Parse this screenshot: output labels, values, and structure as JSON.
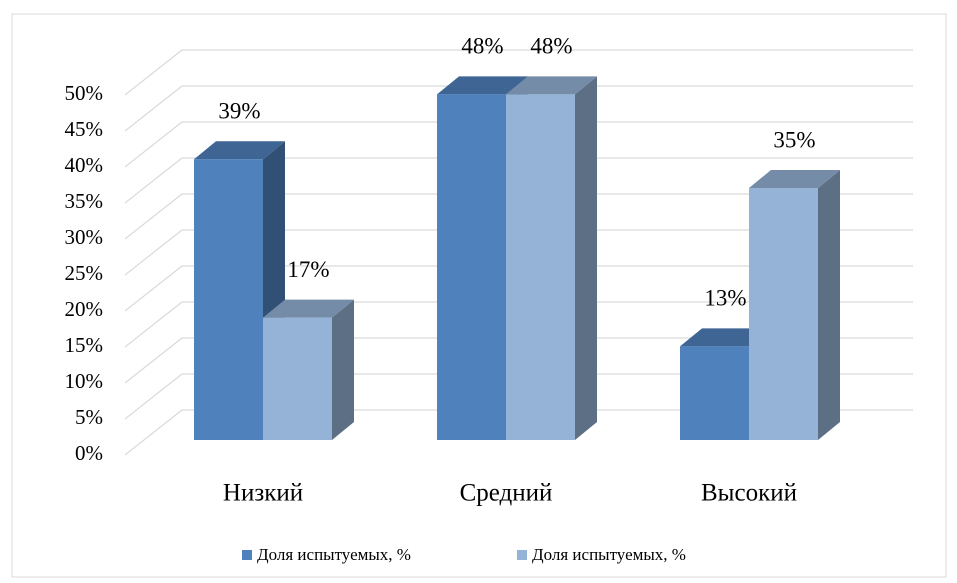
{
  "chart_data": {
    "type": "bar3d",
    "categories": [
      "Низкий",
      "Средний",
      "Высокий"
    ],
    "series": [
      {
        "name": "Доля испытуемых, %",
        "color": "#4f81bd",
        "values": [
          39,
          48,
          13
        ],
        "value_labels": [
          "39%",
          "48%",
          "13%"
        ]
      },
      {
        "name": "Доля испытуемых, %",
        "color": "#95b3d7",
        "values": [
          17,
          48,
          35
        ],
        "value_labels": [
          "17%",
          "48%",
          "35%"
        ]
      }
    ],
    "ylim": [
      0,
      50
    ],
    "yticks": [
      {
        "value": 0,
        "label": "0%"
      },
      {
        "value": 5,
        "label": "5%"
      },
      {
        "value": 10,
        "label": "10%"
      },
      {
        "value": 15,
        "label": "15%"
      },
      {
        "value": 20,
        "label": "20%"
      },
      {
        "value": 25,
        "label": "25%"
      },
      {
        "value": 30,
        "label": "30%"
      },
      {
        "value": 35,
        "label": "35%"
      },
      {
        "value": 40,
        "label": "40%"
      },
      {
        "value": 45,
        "label": "45%"
      },
      {
        "value": 50,
        "label": "50%"
      }
    ],
    "grid": true,
    "legend": "bottom"
  }
}
